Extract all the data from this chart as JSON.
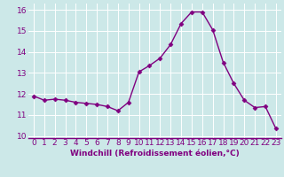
{
  "x": [
    0,
    1,
    2,
    3,
    4,
    5,
    6,
    7,
    8,
    9,
    10,
    11,
    12,
    13,
    14,
    15,
    16,
    17,
    18,
    19,
    20,
    21,
    22,
    23
  ],
  "y": [
    11.9,
    11.7,
    11.75,
    11.7,
    11.6,
    11.55,
    11.5,
    11.4,
    11.2,
    11.6,
    13.05,
    13.35,
    13.7,
    14.35,
    15.35,
    15.9,
    15.9,
    15.05,
    13.5,
    12.5,
    11.7,
    11.35,
    11.4,
    10.35
  ],
  "line_color": "#800080",
  "marker": "D",
  "marker_size": 2.5,
  "bg_color": "#cce8e8",
  "grid_color": "#b0d0d0",
  "xlabel": "Windchill (Refroidissement éolien,°C)",
  "xlabel_fontsize": 6.5,
  "xtick_labels": [
    "0",
    "1",
    "2",
    "3",
    "4",
    "5",
    "6",
    "7",
    "8",
    "9",
    "10",
    "11",
    "12",
    "13",
    "14",
    "15",
    "16",
    "17",
    "18",
    "19",
    "20",
    "21",
    "22",
    "23"
  ],
  "ylim": [
    9.9,
    16.3
  ],
  "yticks": [
    10,
    11,
    12,
    13,
    14,
    15,
    16
  ],
  "tick_fontsize": 6.5,
  "line_width": 1.0,
  "tick_color": "#800080",
  "spine_color": "#800080"
}
